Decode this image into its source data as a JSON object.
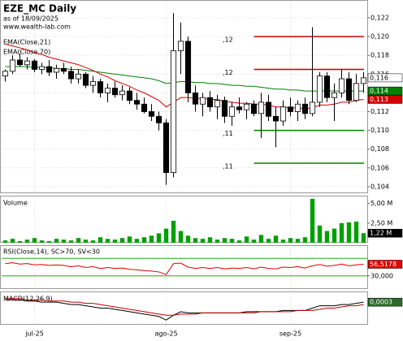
{
  "chart_data": [
    {
      "type": "candlestick",
      "title": "EZE_MC Daily",
      "subtitle": "as of 18/09/2025",
      "source": "www.wealth-lab.com",
      "categories": [
        null,
        null,
        null,
        null,
        "jul-25",
        null,
        null,
        null,
        null,
        null,
        null,
        null,
        null,
        null,
        null,
        null,
        null,
        null,
        null,
        null,
        null,
        null,
        "ago-25",
        null,
        null,
        null,
        null,
        null,
        null,
        null,
        null,
        null,
        null,
        null,
        null,
        null,
        null,
        null,
        null,
        "sep-25",
        null,
        null,
        null,
        null,
        null,
        null,
        null,
        null,
        null,
        null
      ],
      "open": [
        0.1158,
        0.1163,
        0.1175,
        0.117,
        0.1174,
        0.1165,
        0.1168,
        0.1162,
        0.1166,
        0.1163,
        0.1155,
        0.116,
        0.1148,
        0.1152,
        0.114,
        0.1145,
        0.1138,
        0.1142,
        0.1132,
        0.1128,
        0.112,
        0.1115,
        0.1108,
        0.1055,
        0.1185,
        0.1195,
        0.114,
        0.1128,
        0.1135,
        0.1125,
        0.1132,
        0.1115,
        0.1125,
        0.1122,
        0.1128,
        0.1118,
        0.113,
        0.1115,
        0.111,
        0.1125,
        0.112,
        0.1128,
        0.1118,
        0.113,
        0.1158,
        0.1135,
        0.114,
        0.1155,
        0.1132,
        0.115
      ],
      "high": [
        0.1165,
        0.118,
        0.1182,
        0.1178,
        0.1176,
        0.1172,
        0.1175,
        0.117,
        0.1172,
        0.1168,
        0.1165,
        0.1162,
        0.1158,
        0.1155,
        0.115,
        0.1152,
        0.1148,
        0.1146,
        0.114,
        0.1135,
        0.1128,
        0.112,
        0.1112,
        0.1225,
        0.1215,
        0.12,
        0.1148,
        0.114,
        0.1142,
        0.1138,
        0.1136,
        0.113,
        0.1135,
        0.113,
        0.1132,
        0.114,
        0.1138,
        0.1125,
        0.1132,
        0.1135,
        0.1132,
        0.1135,
        0.121,
        0.1162,
        0.1162,
        0.115,
        0.1165,
        0.1162,
        0.116,
        0.1162
      ],
      "low": [
        0.1152,
        0.116,
        0.1168,
        0.1165,
        0.1162,
        0.116,
        0.1158,
        0.1155,
        0.116,
        0.115,
        0.115,
        0.1145,
        0.114,
        0.1135,
        0.113,
        0.1135,
        0.1132,
        0.1128,
        0.1122,
        0.1118,
        0.111,
        0.11,
        0.1042,
        0.105,
        0.116,
        0.113,
        0.112,
        0.1115,
        0.112,
        0.1112,
        0.1108,
        0.1105,
        0.1118,
        0.1112,
        0.1115,
        0.1092,
        0.111,
        0.1082,
        0.1105,
        0.1115,
        0.111,
        0.1112,
        0.1115,
        0.1125,
        0.113,
        0.111,
        0.1135,
        0.1128,
        0.113,
        0.114
      ],
      "close": [
        0.1163,
        0.1175,
        0.117,
        0.1174,
        0.1165,
        0.1168,
        0.1162,
        0.1166,
        0.1163,
        0.1155,
        0.116,
        0.1148,
        0.1152,
        0.114,
        0.1145,
        0.1138,
        0.1142,
        0.1132,
        0.1128,
        0.112,
        0.1115,
        0.1108,
        0.1055,
        0.1185,
        0.1195,
        0.114,
        0.1128,
        0.1135,
        0.1125,
        0.1132,
        0.1115,
        0.1125,
        0.1122,
        0.1128,
        0.1118,
        0.113,
        0.1115,
        0.111,
        0.1125,
        0.112,
        0.1128,
        0.1118,
        0.113,
        0.1158,
        0.1135,
        0.114,
        0.1155,
        0.1132,
        0.115,
        0.1156
      ],
      "last_label": "0,116",
      "series": [
        {
          "name": "EMA(Close,21)",
          "color": "#d00000",
          "last_label": "0,113",
          "values": [
            0.1192,
            0.119,
            0.1188,
            0.1186,
            0.1183,
            0.1181,
            0.1178,
            0.1176,
            0.1174,
            0.1172,
            0.117,
            0.1167,
            0.1164,
            0.116,
            0.1157,
            0.1153,
            0.115,
            0.1147,
            0.1143,
            0.114,
            0.1136,
            0.1132,
            0.1125,
            0.113,
            0.1135,
            0.1135,
            0.1134,
            0.1134,
            0.1133,
            0.1133,
            0.1131,
            0.113,
            0.1129,
            0.1129,
            0.1128,
            0.1128,
            0.1127,
            0.1125,
            0.1125,
            0.1124,
            0.1124,
            0.1123,
            0.1124,
            0.1127,
            0.1127,
            0.1128,
            0.113,
            0.113,
            0.1132,
            0.1133
          ]
        },
        {
          "name": "EMA(Close,70)",
          "color": "#008000",
          "last_label": "0,114",
          "values": [
            0.1168,
            0.1168,
            0.1168,
            0.1168,
            0.1167,
            0.1167,
            0.1167,
            0.1166,
            0.1166,
            0.1165,
            0.1165,
            0.1164,
            0.1163,
            0.1162,
            0.1161,
            0.116,
            0.1159,
            0.1158,
            0.1157,
            0.1156,
            0.1155,
            0.1153,
            0.115,
            0.1151,
            0.1152,
            0.1152,
            0.1151,
            0.1151,
            0.115,
            0.115,
            0.1149,
            0.1148,
            0.1148,
            0.1147,
            0.1147,
            0.1146,
            0.1145,
            0.1144,
            0.1144,
            0.1143,
            0.1143,
            0.1142,
            0.1142,
            0.1142,
            0.1142,
            0.1142,
            0.1142,
            0.1142,
            0.1142,
            0.1142
          ]
        }
      ],
      "levels": [
        {
          "value": 0.12,
          "label": ",12",
          "color": "#c00000"
        },
        {
          "value": 0.1165,
          "label": ",12",
          "color": "#c00000"
        },
        {
          "value": 0.11,
          "label": ",11",
          "color": "#008000"
        },
        {
          "value": 0.1065,
          "label": ",11",
          "color": "#008000"
        }
      ],
      "ylim": [
        0.1033,
        0.1239
      ],
      "yticks": [
        {
          "value": 0.104,
          "label": "0,104"
        },
        {
          "value": 0.106,
          "label": "0,106"
        },
        {
          "value": 0.108,
          "label": "0,108"
        },
        {
          "value": 0.11,
          "label": "0,110"
        },
        {
          "value": 0.112,
          "label": "0,112"
        },
        {
          "value": 0.114,
          "label": "0,114"
        },
        {
          "value": 0.116,
          "label": "0,116"
        },
        {
          "value": 0.118,
          "label": "0,118"
        },
        {
          "value": 0.12,
          "label": "0,120"
        },
        {
          "value": 0.122,
          "label": "0,122"
        }
      ],
      "grid": true
    },
    {
      "type": "bar",
      "title": "Volume",
      "color": "#00a000",
      "last_label": "1,22 M",
      "values": [
        0.3,
        0.5,
        0.2,
        0.4,
        0.6,
        0.3,
        0.2,
        0.5,
        0.4,
        0.3,
        0.6,
        0.4,
        0.3,
        0.7,
        0.5,
        0.4,
        0.6,
        0.8,
        0.5,
        0.7,
        0.9,
        1.2,
        1.8,
        2.8,
        1.5,
        0.9,
        0.6,
        0.5,
        0.7,
        0.4,
        0.6,
        0.5,
        0.3,
        0.8,
        0.4,
        1.0,
        0.5,
        0.9,
        0.4,
        0.6,
        0.5,
        0.7,
        5.6,
        2.2,
        1.5,
        1.8,
        2.5,
        2.6,
        2.7,
        1.22
      ],
      "ylim": [
        0,
        6
      ],
      "yticks": [
        {
          "value": 2.5,
          "label": "2,50 M"
        },
        {
          "value": 5,
          "label": "5,00 M"
        }
      ]
    },
    {
      "type": "line",
      "title": "RSI(Close,14), SC>70, SV<30",
      "thresholds": [
        70,
        30
      ],
      "series": [
        {
          "name": "RSI(Close,14)",
          "color": "#e00000",
          "last_label": "56,5178",
          "values": [
            58,
            60,
            57,
            58,
            55,
            56,
            54,
            55,
            54,
            51,
            53,
            49,
            51,
            47,
            49,
            47,
            48,
            45,
            44,
            42,
            41,
            39,
            33,
            58,
            59,
            50,
            47,
            49,
            47,
            49,
            46,
            48,
            47,
            49,
            46,
            50,
            47,
            46,
            50,
            49,
            51,
            48,
            53,
            56,
            52,
            54,
            57,
            53,
            55,
            56.5178
          ]
        }
      ],
      "ylim": [
        0,
        100
      ],
      "yticks": [
        {
          "value": 30,
          "label": "30,000"
        }
      ]
    },
    {
      "type": "line",
      "title": "MACD(12,26,9)",
      "series": [
        {
          "name": "MACD(12,26,9)",
          "color": "#000000",
          "last_label": "0,0003",
          "values": [
            0.0005,
            0.0005,
            0.0005,
            0.0004,
            0.0004,
            0.0003,
            0.0003,
            0.0003,
            0.0002,
            0.0001,
            0.0001,
            0,
            -0.0001,
            -0.0002,
            -0.0002,
            -0.0003,
            -0.0004,
            -0.0005,
            -0.0006,
            -0.0007,
            -0.0008,
            -0.0009,
            -0.0012,
            -0.0008,
            -0.0005,
            -0.0006,
            -0.0006,
            -0.0006,
            -0.0006,
            -0.0006,
            -0.0006,
            -0.0006,
            -0.0006,
            -0.0005,
            -0.0005,
            -0.0005,
            -0.0005,
            -0.0005,
            -0.0004,
            -0.0004,
            -0.0004,
            -0.0004,
            -0.0002,
            0,
            0,
            0,
            0.0001,
            0.0001,
            0.0002,
            0.0003
          ]
        },
        {
          "name": "Signal",
          "color": "#c00000",
          "values": [
            0.0006,
            0.0006,
            0.0006,
            0.0005,
            0.0005,
            0.0005,
            0.0004,
            0.0004,
            0.0004,
            0.0003,
            0.0003,
            0.0002,
            0.0002,
            0.0001,
            0,
            -0.0001,
            -0.0002,
            -0.0003,
            -0.0004,
            -0.0005,
            -0.0006,
            -0.0007,
            -0.0008,
            -0.0008,
            -0.0007,
            -0.0007,
            -0.0007,
            -0.0006,
            -0.0006,
            -0.0006,
            -0.0006,
            -0.0006,
            -0.0006,
            -0.0006,
            -0.0006,
            -0.0005,
            -0.0005,
            -0.0005,
            -0.0005,
            -0.0005,
            -0.0004,
            -0.0004,
            -0.0004,
            -0.0003,
            -0.0002,
            -0.0002,
            -0.0001,
            0,
            0,
            0.0001
          ]
        }
      ],
      "ylim": [
        -0.0016,
        0.0012
      ],
      "yticks": []
    }
  ]
}
